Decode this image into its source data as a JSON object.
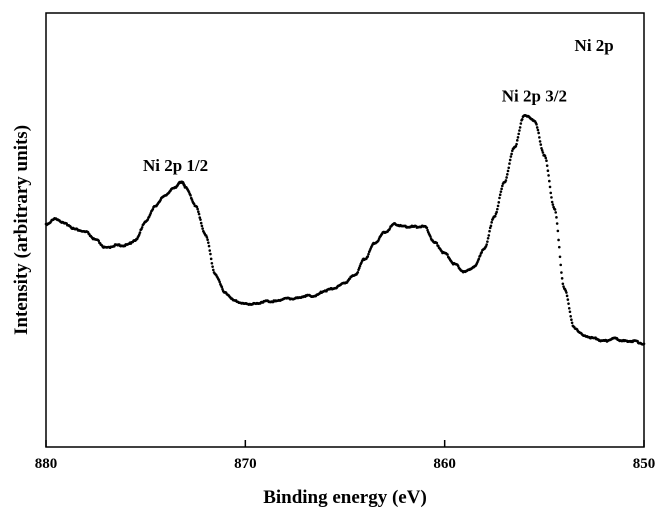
{
  "chart_data": {
    "type": "scatter",
    "title": "",
    "xlabel": "Binding energy (eV)",
    "ylabel": "Intensity (arbitrary units)",
    "xlim": [
      880,
      850
    ],
    "ylim": [
      0,
      100
    ],
    "x_reversed": true,
    "y_ticks_shown": false,
    "grid": false,
    "xticks": [
      880,
      870,
      860,
      850
    ],
    "xtick_labels": [
      "880",
      "870",
      "860",
      "850"
    ],
    "marker_color": "#000000",
    "series": [
      {
        "x": [
          880,
          879.5,
          879,
          878.5,
          878,
          877.5,
          877,
          876.5,
          876,
          875.5,
          875,
          874.5,
          874,
          873.5,
          873.2,
          873,
          872.5,
          872,
          871.5,
          871,
          870.5,
          870,
          869.5,
          869,
          868.5,
          868,
          867.5,
          867,
          866.5,
          866,
          865.5,
          865,
          864.5,
          864,
          863.5,
          863,
          862.5,
          862,
          861.5,
          861,
          860.5,
          860,
          859.5,
          859,
          858.5,
          858,
          857.5,
          857,
          856.5,
          856,
          855.5,
          855,
          854.5,
          854,
          853.5,
          853,
          852.5,
          852,
          851.5,
          851,
          850.5,
          850
        ],
        "y": [
          59,
          61,
          59,
          57,
          56,
          53,
          50,
          51,
          51,
          53,
          60,
          66,
          70,
          73,
          75,
          73,
          66,
          55,
          40,
          33,
          30,
          29,
          29,
          30,
          30,
          31,
          31,
          32,
          32,
          34,
          35,
          37,
          40,
          46,
          52,
          56,
          59,
          58,
          58,
          58,
          52,
          48,
          44,
          41,
          43,
          50,
          62,
          75,
          88,
          100,
          98,
          85,
          65,
          35,
          20,
          17,
          16,
          15,
          16,
          15,
          15,
          14
        ]
      }
    ],
    "annotations": [
      {
        "text": "Ni 2p 1/2",
        "x": 873.5,
        "y": 79
      },
      {
        "text": "Ni 2p 3/2",
        "x": 855.5,
        "y": 105
      },
      {
        "text": "Ni 2p",
        "x": 852.5,
        "y": 124
      }
    ]
  }
}
